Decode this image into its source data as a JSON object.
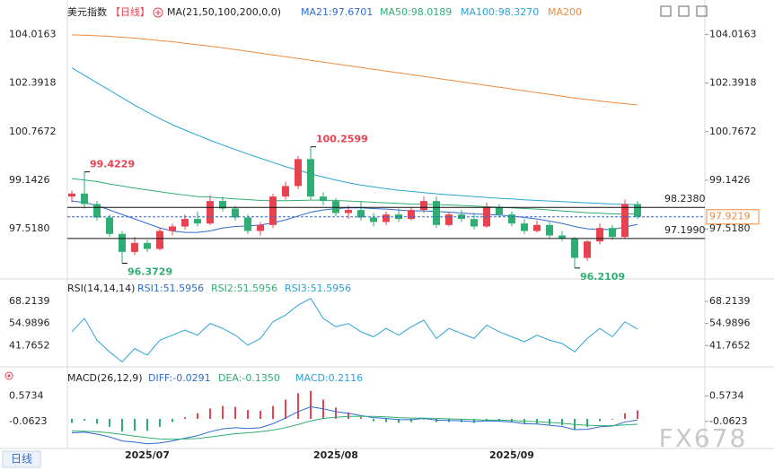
{
  "chart_data": [
    {
      "type": "candlestick",
      "title": "美元指数",
      "period": "【日线】",
      "indicator": "MA(21,50,100,200,0,0)",
      "categories": [
        null,
        null,
        null,
        null,
        null,
        null,
        "2025/07",
        null,
        null,
        null,
        null,
        null,
        null,
        null,
        null,
        null,
        null,
        null,
        null,
        null,
        null,
        "2025/08",
        null,
        null,
        null,
        null,
        null,
        null,
        null,
        null,
        null,
        null,
        null,
        null,
        null,
        "2025/09",
        null,
        null,
        null,
        null,
        null,
        null,
        null,
        null,
        null,
        null
      ],
      "open": [
        98.6,
        98.7,
        98.35,
        97.9,
        97.35,
        96.75,
        97.05,
        96.85,
        97.45,
        97.6,
        97.85,
        97.7,
        98.45,
        98.2,
        97.9,
        97.45,
        97.65,
        98.6,
        98.95,
        99.85,
        98.6,
        98.45,
        98.05,
        98.15,
        97.9,
        97.75,
        98.0,
        97.85,
        98.15,
        98.45,
        97.65,
        98.0,
        97.85,
        97.6,
        98.25,
        98.0,
        97.7,
        97.45,
        97.65,
        97.3,
        97.2,
        96.55,
        97.1,
        97.55,
        97.25,
        98.35
      ],
      "high": [
        98.8,
        99.4229,
        98.45,
        98.0,
        97.45,
        97.25,
        97.15,
        97.55,
        97.7,
        98.0,
        98.1,
        98.65,
        98.6,
        98.3,
        98.0,
        97.75,
        98.7,
        99.1,
        99.95,
        100.2599,
        98.75,
        98.55,
        98.3,
        98.45,
        98.05,
        98.1,
        98.2,
        98.25,
        98.6,
        98.6,
        98.1,
        98.15,
        98.05,
        98.4,
        98.35,
        98.1,
        97.85,
        97.8,
        97.75,
        97.45,
        97.25,
        97.15,
        97.7,
        97.65,
        98.5,
        98.45
      ],
      "low": [
        98.4,
        98.2,
        97.8,
        97.25,
        96.3729,
        96.65,
        96.75,
        96.8,
        97.3,
        97.5,
        97.6,
        97.65,
        98.1,
        97.8,
        97.35,
        97.3,
        97.55,
        98.5,
        98.85,
        98.5,
        98.3,
        97.95,
        97.85,
        97.8,
        97.6,
        97.65,
        97.75,
        97.8,
        98.05,
        97.55,
        97.6,
        97.75,
        97.5,
        97.55,
        97.9,
        97.6,
        97.35,
        97.4,
        97.2,
        97.1,
        96.2109,
        96.45,
        97.0,
        97.15,
        97.2,
        97.85
      ],
      "close": [
        98.7,
        98.35,
        97.9,
        97.35,
        96.75,
        97.05,
        96.85,
        97.45,
        97.6,
        97.85,
        97.7,
        98.45,
        98.2,
        97.9,
        97.45,
        97.65,
        98.6,
        98.95,
        99.85,
        98.6,
        98.45,
        98.05,
        98.15,
        97.9,
        97.75,
        98.0,
        97.85,
        98.15,
        98.45,
        97.65,
        98.0,
        97.85,
        97.6,
        98.25,
        98.0,
        97.7,
        97.45,
        97.65,
        97.3,
        97.2,
        96.55,
        97.1,
        97.55,
        97.25,
        98.35,
        97.9219
      ],
      "up_color": "#e8414f",
      "down_color": "#2fae74",
      "series": [
        {
          "name": "MA21:97.6701",
          "color": "#2f6bd0",
          "values": [
            98.45,
            98.4,
            98.3,
            98.15,
            98.0,
            97.85,
            97.7,
            97.55,
            97.45,
            97.4,
            97.4,
            97.45,
            97.55,
            97.6,
            97.62,
            97.65,
            97.72,
            97.82,
            97.95,
            98.08,
            98.15,
            98.2,
            98.22,
            98.22,
            98.2,
            98.18,
            98.15,
            98.12,
            98.12,
            98.1,
            98.08,
            98.05,
            98.02,
            98.0,
            97.98,
            97.95,
            97.9,
            97.85,
            97.78,
            97.7,
            97.6,
            97.52,
            97.5,
            97.5,
            97.58,
            97.6701
          ]
        },
        {
          "name": "MA50:98.0189",
          "color": "#2fae74",
          "values": [
            99.2,
            99.15,
            99.1,
            99.02,
            98.95,
            98.88,
            98.82,
            98.76,
            98.7,
            98.65,
            98.6,
            98.58,
            98.55,
            98.52,
            98.5,
            98.47,
            98.46,
            98.46,
            98.47,
            98.48,
            98.48,
            98.47,
            98.45,
            98.43,
            98.41,
            98.39,
            98.37,
            98.35,
            98.34,
            98.33,
            98.32,
            98.3,
            98.28,
            98.26,
            98.24,
            98.22,
            98.2,
            98.18,
            98.15,
            98.12,
            98.09,
            98.06,
            98.04,
            98.02,
            98.02,
            98.0189
          ]
        },
        {
          "name": "MA100:98.3270",
          "color": "#2aa3d8",
          "values": [
            102.9,
            102.65,
            102.4,
            102.15,
            101.9,
            101.65,
            101.42,
            101.2,
            101.0,
            100.82,
            100.65,
            100.48,
            100.32,
            100.17,
            100.02,
            99.88,
            99.74,
            99.6,
            99.48,
            99.36,
            99.25,
            99.15,
            99.06,
            98.98,
            98.92,
            98.86,
            98.81,
            98.77,
            98.73,
            98.69,
            98.66,
            98.63,
            98.6,
            98.57,
            98.54,
            98.52,
            98.49,
            98.47,
            98.45,
            98.43,
            98.41,
            98.39,
            98.37,
            98.35,
            98.34,
            98.327
          ]
        },
        {
          "name": "MA200",
          "color": "#f08a3c",
          "values": [
            104.0,
            103.99,
            103.97,
            103.95,
            103.92,
            103.89,
            103.85,
            103.81,
            103.77,
            103.72,
            103.67,
            103.62,
            103.57,
            103.51,
            103.45,
            103.39,
            103.33,
            103.27,
            103.21,
            103.15,
            103.09,
            103.03,
            102.97,
            102.91,
            102.85,
            102.79,
            102.73,
            102.67,
            102.61,
            102.55,
            102.49,
            102.43,
            102.37,
            102.31,
            102.25,
            102.19,
            102.13,
            102.07,
            102.01,
            101.95,
            101.89,
            101.84,
            101.79,
            101.74,
            101.7,
            101.66
          ]
        }
      ],
      "price_labels": [
        99.4229,
        96.3729,
        100.2599,
        96.2109
      ],
      "hlines": [
        {
          "value": 98.238,
          "label": "98.2380"
        },
        {
          "value": 97.199,
          "label": "97.1990"
        }
      ],
      "last_price": {
        "value": 97.9219,
        "label": "97.9219"
      },
      "ylim": [
        95.937,
        104.505
      ],
      "yticks": [
        104.0163,
        102.3918,
        100.7672,
        99.1426,
        {
          "value": 97.518,
          "label": "97.5180"
        }
      ]
    },
    {
      "type": "line",
      "title": "RSI(14,14,14)",
      "legend": [
        "RSI1:51.5956",
        "RSI2:51.5956",
        "RSI3:51.5956"
      ],
      "legend_colors": [
        "#2f6bd0",
        "#2fae74",
        "#2aa3d8"
      ],
      "color": "#2aa3d8",
      "values": [
        50,
        58,
        45,
        38,
        32,
        40,
        36,
        45,
        48,
        51,
        48,
        55,
        52,
        48,
        42,
        46,
        56,
        60,
        66,
        70,
        58,
        53,
        55,
        50,
        47,
        52,
        48,
        53,
        57,
        46,
        52,
        49,
        46,
        54,
        50,
        47,
        44,
        48,
        45,
        43,
        38,
        46,
        52,
        47,
        56,
        51.5956
      ],
      "ylim": [
        29.56,
        77.88
      ],
      "yticks": [
        68.2139,
        54.9896,
        41.7652
      ]
    },
    {
      "type": "macd",
      "title": "MACD(26,12,9)",
      "up_color": "#e8414f",
      "down_color": "#2fae74",
      "series": [
        {
          "name": "DIFF:-0.0291",
          "color": "#2f6bd0",
          "values": [
            -0.35,
            -0.33,
            -0.38,
            -0.45,
            -0.55,
            -0.58,
            -0.62,
            -0.6,
            -0.55,
            -0.48,
            -0.42,
            -0.32,
            -0.25,
            -0.22,
            -0.24,
            -0.22,
            -0.12,
            0.02,
            0.18,
            0.3,
            0.25,
            0.18,
            0.14,
            0.08,
            0.03,
            0.01,
            -0.02,
            -0.02,
            0.01,
            -0.03,
            -0.04,
            -0.05,
            -0.07,
            -0.05,
            -0.06,
            -0.08,
            -0.12,
            -0.13,
            -0.16,
            -0.19,
            -0.27,
            -0.26,
            -0.2,
            -0.18,
            -0.08,
            -0.0291
          ]
        },
        {
          "name": "DEA:-0.1350",
          "color": "#2fae74",
          "values": [
            -0.3,
            -0.31,
            -0.32,
            -0.35,
            -0.39,
            -0.43,
            -0.47,
            -0.5,
            -0.51,
            -0.5,
            -0.49,
            -0.45,
            -0.41,
            -0.37,
            -0.35,
            -0.32,
            -0.28,
            -0.22,
            -0.14,
            -0.05,
            0.01,
            0.04,
            0.06,
            0.06,
            0.06,
            0.05,
            0.03,
            0.02,
            0.02,
            0.01,
            0.0,
            -0.01,
            -0.02,
            -0.03,
            -0.03,
            -0.04,
            -0.06,
            -0.07,
            -0.09,
            -0.11,
            -0.14,
            -0.16,
            -0.17,
            -0.17,
            -0.15,
            -0.135
          ]
        },
        {
          "name": "MACD:0.2116",
          "color": "#2aa3d8",
          "values": [
            -0.1,
            -0.04,
            -0.12,
            -0.2,
            -0.32,
            -0.3,
            -0.3,
            -0.2,
            -0.08,
            0.04,
            0.14,
            0.26,
            0.32,
            0.3,
            0.22,
            0.2,
            0.32,
            0.48,
            0.64,
            0.7,
            0.48,
            0.28,
            0.16,
            0.04,
            -0.06,
            -0.08,
            -0.1,
            -0.08,
            -0.02,
            -0.08,
            -0.08,
            -0.08,
            -0.1,
            -0.04,
            -0.06,
            -0.08,
            -0.12,
            -0.12,
            -0.14,
            -0.16,
            -0.26,
            -0.2,
            -0.06,
            -0.02,
            0.14,
            0.2116
          ]
        }
      ],
      "ylim": [
        -0.738,
        1.05
      ],
      "yticks": [
        0.5734,
        -0.0623
      ]
    }
  ],
  "ui": {
    "period_button": "日线",
    "watermark": "FX678"
  }
}
